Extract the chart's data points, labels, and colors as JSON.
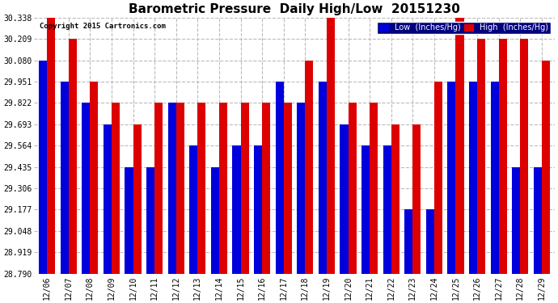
{
  "title": "Barometric Pressure  Daily High/Low  20151230",
  "copyright": "Copyright 2015 Cartronics.com",
  "dates": [
    "12/06",
    "12/07",
    "12/08",
    "12/09",
    "12/10",
    "12/11",
    "12/12",
    "12/13",
    "12/14",
    "12/15",
    "12/16",
    "12/17",
    "12/18",
    "12/19",
    "12/20",
    "12/21",
    "12/22",
    "12/23",
    "12/24",
    "12/25",
    "12/26",
    "12/27",
    "12/28",
    "12/29"
  ],
  "low": [
    30.08,
    29.951,
    29.822,
    29.693,
    29.435,
    29.435,
    29.822,
    29.564,
    29.435,
    29.564,
    29.564,
    29.951,
    29.822,
    29.951,
    29.693,
    29.564,
    29.564,
    29.177,
    29.177,
    29.951,
    29.951,
    29.951,
    29.435,
    29.435
  ],
  "high": [
    30.338,
    30.209,
    29.951,
    29.822,
    29.693,
    29.822,
    29.822,
    29.822,
    29.822,
    29.822,
    29.822,
    29.822,
    30.08,
    30.338,
    29.822,
    29.822,
    29.693,
    29.693,
    29.951,
    30.338,
    30.209,
    30.209,
    30.209,
    30.08
  ],
  "ymin": 28.79,
  "ymax": 30.338,
  "yticks": [
    28.79,
    28.919,
    29.048,
    29.177,
    29.306,
    29.435,
    29.564,
    29.693,
    29.822,
    29.951,
    30.08,
    30.209,
    30.338
  ],
  "low_color": "#0000dd",
  "high_color": "#dd0000",
  "bg_color": "#ffffff",
  "grid_color": "#bbbbbb",
  "title_fontsize": 11,
  "tick_fontsize": 7,
  "legend_low_label": "Low  (Inches/Hg)",
  "legend_high_label": "High  (Inches/Hg)"
}
